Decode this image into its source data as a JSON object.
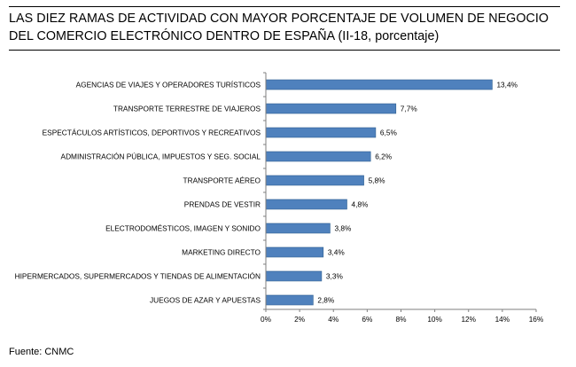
{
  "chart_data": {
    "type": "bar",
    "orientation": "horizontal",
    "title": "LAS DIEZ RAMAS DE ACTIVIDAD CON MAYOR PORCENTAJE DE VOLUMEN DE NEGOCIO DEL COMERCIO ELECTRÓNICO DENTRO DE ESPAÑA (II-18, porcentaje)",
    "categories": [
      "AGENCIAS DE VIAJES Y OPERADORES TURÍSTICOS",
      "TRANSPORTE TERRESTRE DE VIAJEROS",
      "ESPECTÁCULOS ARTÍSTICOS, DEPORTIVOS Y RECREATIVOS",
      "ADMINISTRACIÓN PÚBLICA, IMPUESTOS Y SEG. SOCIAL",
      "TRANSPORTE AÉREO",
      "PRENDAS DE VESTIR",
      "ELECTRODOMÉSTICOS,  IMAGEN Y SONIDO",
      "MARKETING DIRECTO",
      "HIPERMERCADOS, SUPERMERCADOS Y TIENDAS DE ALIMENTACIÓN",
      "JUEGOS DE AZAR Y APUESTAS"
    ],
    "values": [
      13.4,
      7.7,
      6.5,
      6.2,
      5.8,
      4.8,
      3.8,
      3.4,
      3.3,
      2.8
    ],
    "value_labels": [
      "13,4%",
      "7,7%",
      "6,5%",
      "6,2%",
      "5,8%",
      "4,8%",
      "3,8%",
      "3,4%",
      "3,3%",
      "2,8%"
    ],
    "xlim": [
      0,
      16
    ],
    "x_ticks": [
      0,
      2,
      4,
      6,
      8,
      10,
      12,
      14,
      16
    ],
    "x_tick_labels": [
      "0%",
      "2%",
      "4%",
      "6%",
      "8%",
      "10%",
      "12%",
      "14%",
      "16%"
    ],
    "grid": false,
    "legend": "none",
    "bar_color": "#4f81bd",
    "bar_edge_color": "#2f5f8f"
  },
  "source": "Fuente: CNMC"
}
